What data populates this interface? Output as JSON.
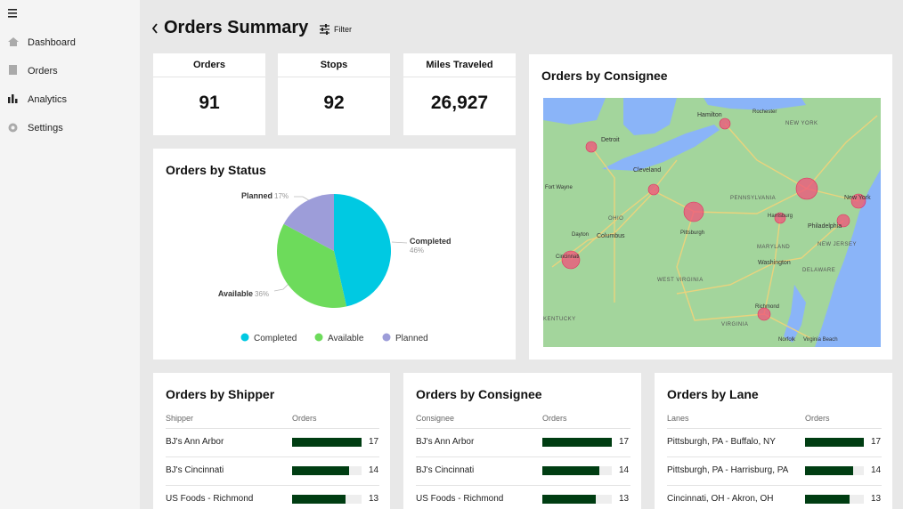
{
  "sidebar": {
    "items": [
      "Dashboard",
      "Orders",
      "Analytics",
      "Settings"
    ]
  },
  "header": {
    "title": "Orders Summary",
    "filter": "Filter"
  },
  "kpis": [
    {
      "label": "Orders",
      "value": 91
    },
    {
      "label": "Stops",
      "value": 92
    },
    {
      "label": "Miles Traveled",
      "value": "26,927"
    }
  ],
  "status_chart": {
    "type": "pie",
    "title": "Orders by Status",
    "categories": [
      "Completed",
      "Available",
      "Planned"
    ],
    "values": [
      46,
      36,
      17
    ],
    "value_labels": [
      "46%",
      "36%",
      "17%"
    ],
    "colors": [
      "#00c9e2",
      "#6ddb5b",
      "#9d9dd9"
    ]
  },
  "map": {
    "title": "Orders by Consignee",
    "labels": [
      "Hamilton",
      "Rochester",
      "NEW YORK",
      "Detroit",
      "Cleveland",
      "Fort Wayne",
      "OHIO",
      "Pittsburgh",
      "PENNSYLVANIA",
      "Columbus",
      "Dayton",
      "Cincinnati",
      "Harrisburg",
      "Philadelphia",
      "New York",
      "NEW JERSEY",
      "MARYLAND",
      "Washington",
      "DELAWARE",
      "WEST VIRGINIA",
      "VIRGINIA",
      "Richmond",
      "Norfolk",
      "Virginia Beach",
      "KENTUCKY"
    ]
  },
  "tables": [
    {
      "title": "Orders by Shipper",
      "columns": [
        "Shipper",
        "Orders"
      ],
      "bar_color": "#003d12",
      "rows": [
        {
          "name": "BJ's Ann Arbor",
          "value": 17
        },
        {
          "name": "BJ's Cincinnati",
          "value": 14
        },
        {
          "name": "US Foods - Richmond",
          "value": 13
        }
      ]
    },
    {
      "title": "Orders by Consignee",
      "columns": [
        "Consignee",
        "Orders"
      ],
      "bar_color": "#003d12",
      "rows": [
        {
          "name": "BJ's Ann Arbor",
          "value": 17
        },
        {
          "name": "BJ's Cincinnati",
          "value": 14
        },
        {
          "name": "US Foods - Richmond",
          "value": 13
        }
      ]
    },
    {
      "title": "Orders by Lane",
      "columns": [
        "Lanes",
        "Orders"
      ],
      "bar_color": "#003d12",
      "rows": [
        {
          "name": "Pittsburgh, PA - Buffalo, NY",
          "value": 17
        },
        {
          "name": "Pittsburgh, PA - Harrisburg, PA",
          "value": 14
        },
        {
          "name": "Cincinnati, OH - Akron, OH",
          "value": 13
        }
      ]
    }
  ]
}
